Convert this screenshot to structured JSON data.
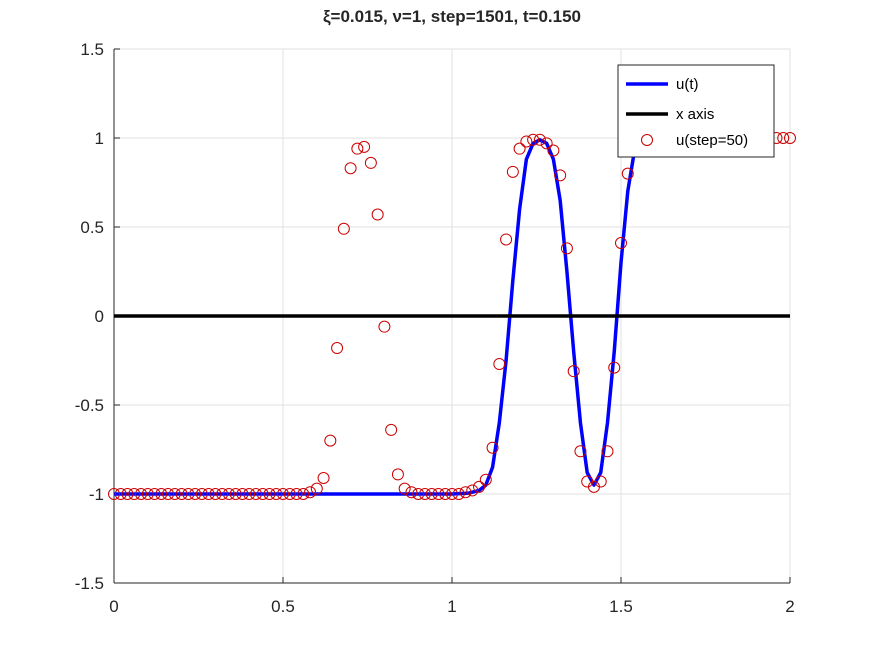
{
  "chart_data": {
    "type": "line",
    "title": "ξ=0.015, ν=1, step=1501, t=0.150",
    "xlabel": "",
    "ylabel": "",
    "xlim": [
      0,
      2
    ],
    "ylim": [
      -1.5,
      1.5
    ],
    "x_ticks": [
      "0",
      "0.5",
      "1",
      "1.5",
      "2"
    ],
    "y_ticks": [
      "1.5",
      "1",
      "0.5",
      "0",
      "-0.5",
      "-1",
      "-1.5"
    ],
    "grid": true,
    "legend_position": "top-right",
    "series": [
      {
        "name": "u(t)",
        "style": "line",
        "color": "#0000ff",
        "x": [
          0,
          0.9,
          1.0,
          1.05,
          1.08,
          1.1,
          1.12,
          1.14,
          1.16,
          1.18,
          1.2,
          1.22,
          1.24,
          1.26,
          1.28,
          1.3,
          1.32,
          1.34,
          1.36,
          1.38,
          1.4,
          1.42,
          1.44,
          1.46,
          1.48,
          1.5,
          1.52,
          1.54,
          1.55
        ],
        "y": [
          -1,
          -1,
          -1,
          -0.995,
          -0.98,
          -0.95,
          -0.85,
          -0.6,
          -0.25,
          0.2,
          0.6,
          0.88,
          0.97,
          0.99,
          0.97,
          0.88,
          0.65,
          0.25,
          -0.2,
          -0.6,
          -0.88,
          -0.95,
          -0.88,
          -0.6,
          -0.2,
          0.3,
          0.7,
          0.93,
          1.0
        ]
      },
      {
        "name": "x axis",
        "style": "line",
        "color": "#000000",
        "x": [
          0,
          2
        ],
        "y": [
          0,
          0
        ]
      },
      {
        "name": "u(step=50)",
        "style": "markers",
        "color": "#cc0000",
        "x": [
          0,
          0.02,
          0.04,
          0.06,
          0.08,
          0.1,
          0.12,
          0.14,
          0.16,
          0.18,
          0.2,
          0.22,
          0.24,
          0.26,
          0.28,
          0.3,
          0.32,
          0.34,
          0.36,
          0.38,
          0.4,
          0.42,
          0.44,
          0.46,
          0.48,
          0.5,
          0.52,
          0.54,
          0.56,
          0.58,
          0.6,
          0.62,
          0.64,
          0.66,
          0.68,
          0.7,
          0.72,
          0.74,
          0.76,
          0.78,
          0.8,
          0.82,
          0.84,
          0.86,
          0.88,
          0.9,
          0.92,
          0.94,
          0.96,
          0.98,
          1.0,
          1.02,
          1.04,
          1.06,
          1.08,
          1.1,
          1.12,
          1.14,
          1.16,
          1.18,
          1.2,
          1.22,
          1.24,
          1.26,
          1.28,
          1.3,
          1.32,
          1.34,
          1.36,
          1.38,
          1.4,
          1.42,
          1.44,
          1.46,
          1.48,
          1.5,
          1.52,
          1.96,
          1.98,
          2.0
        ],
        "y": [
          -1,
          -1,
          -1,
          -1,
          -1,
          -1,
          -1,
          -1,
          -1,
          -1,
          -1,
          -1,
          -1,
          -1,
          -1,
          -1,
          -1,
          -1,
          -1,
          -1,
          -1,
          -1,
          -1,
          -1,
          -1,
          -1,
          -1,
          -1,
          -1,
          -0.99,
          -0.97,
          -0.91,
          -0.7,
          -0.18,
          0.49,
          0.83,
          0.94,
          0.95,
          0.86,
          0.57,
          -0.06,
          -0.64,
          -0.89,
          -0.97,
          -0.99,
          -1,
          -1,
          -1,
          -1,
          -1,
          -1,
          -1,
          -0.99,
          -0.98,
          -0.96,
          -0.92,
          -0.74,
          -0.27,
          0.43,
          0.81,
          0.94,
          0.98,
          0.99,
          0.99,
          0.97,
          0.93,
          0.79,
          0.38,
          -0.31,
          -0.76,
          -0.93,
          -0.96,
          -0.93,
          -0.76,
          -0.29,
          0.41,
          0.8,
          1,
          1,
          1
        ]
      }
    ]
  }
}
